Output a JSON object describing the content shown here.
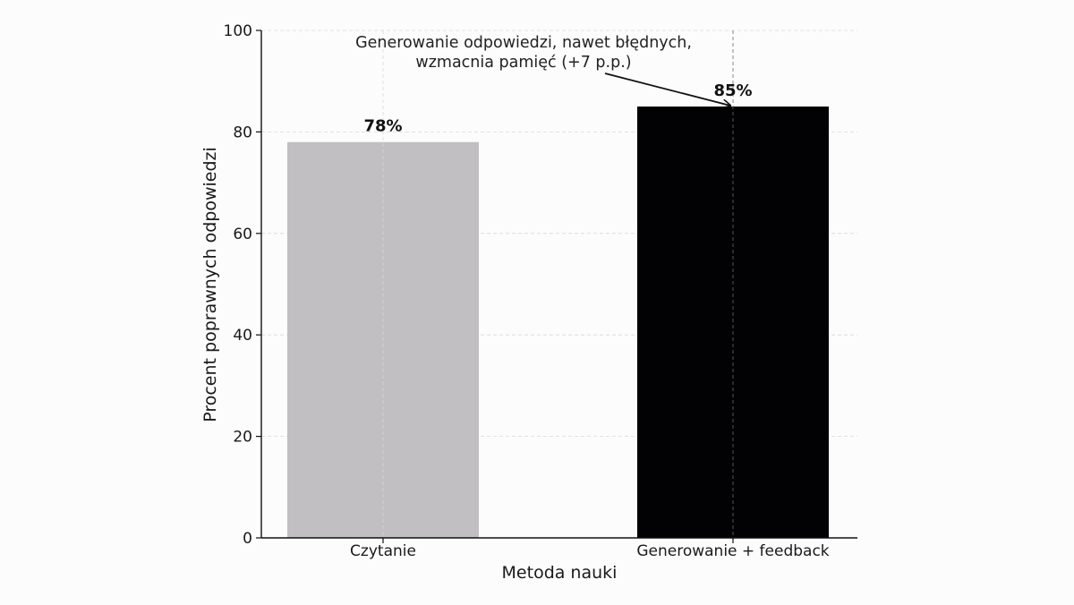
{
  "chart_data": {
    "type": "bar",
    "categories": [
      "Czytanie",
      "Generowanie + feedback"
    ],
    "values": [
      78,
      85
    ],
    "value_labels": [
      "78%",
      "85%"
    ],
    "colors": [
      "#c1bfc2",
      "#020103"
    ],
    "xlabel": "Metoda nauki",
    "ylabel": "Procent poprawnych odpowiedzi",
    "ylim": [
      0,
      100
    ],
    "yticks": [
      "0",
      "20",
      "40",
      "60",
      "80",
      "100"
    ],
    "ytick_values": [
      0,
      20,
      40,
      60,
      80,
      100
    ],
    "grid": true,
    "annotation": {
      "lines": [
        "Generowanie odpowiedzi, nawet błędnych,",
        "wzmacnia pamięć (+7 p.p.)"
      ],
      "target_category": "Generowanie + feedback",
      "target_value": 85
    }
  }
}
